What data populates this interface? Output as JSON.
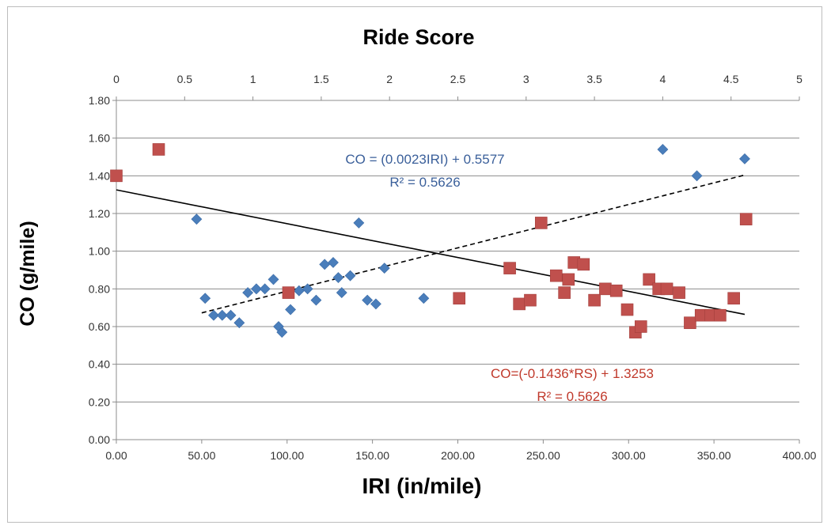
{
  "chart_data": {
    "type": "scatter",
    "title": "Ride Score",
    "xlabel": "IRI (in/mile)",
    "ylabel": "CO (g/mile)",
    "x_axis": {
      "range": [
        0,
        400
      ],
      "tick_labels": [
        "0.00",
        "50.00",
        "100.00",
        "150.00",
        "200.00",
        "250.00",
        "300.00",
        "350.00",
        "400.00"
      ]
    },
    "x2_axis": {
      "range": [
        0,
        5
      ],
      "tick_labels": [
        "0",
        "0.5",
        "1",
        "1.5",
        "2",
        "2.5",
        "3",
        "3.5",
        "4",
        "4.5",
        "5"
      ]
    },
    "y_axis": {
      "range": [
        0,
        1.8
      ],
      "tick_labels": [
        "0.00",
        "0.20",
        "0.40",
        "0.60",
        "0.80",
        "1.00",
        "1.20",
        "1.40",
        "1.60",
        "1.80"
      ]
    },
    "grid": true,
    "series": [
      {
        "axis": "IRI",
        "marker": "diamond",
        "color": "#4a7ebb",
        "points": [
          [
            47,
            1.17
          ],
          [
            52,
            0.75
          ],
          [
            57,
            0.66
          ],
          [
            62,
            0.66
          ],
          [
            67,
            0.66
          ],
          [
            72,
            0.62
          ],
          [
            77,
            0.78
          ],
          [
            82,
            0.8
          ],
          [
            87,
            0.8
          ],
          [
            92,
            0.85
          ],
          [
            95,
            0.6
          ],
          [
            97,
            0.57
          ],
          [
            102,
            0.69
          ],
          [
            107,
            0.79
          ],
          [
            112,
            0.8
          ],
          [
            117,
            0.74
          ],
          [
            122,
            0.93
          ],
          [
            127,
            0.94
          ],
          [
            130,
            0.86
          ],
          [
            132,
            0.78
          ],
          [
            137,
            0.87
          ],
          [
            142,
            1.15
          ],
          [
            147,
            0.74
          ],
          [
            152,
            0.72
          ],
          [
            157,
            0.91
          ],
          [
            180,
            0.75
          ],
          [
            320,
            1.54
          ],
          [
            340,
            1.4
          ],
          [
            368,
            1.49
          ]
        ]
      },
      {
        "axis": "Ride Score",
        "marker": "square",
        "color": "#c0504d",
        "points": [
          [
            0.0,
            1.4
          ],
          [
            0.31,
            1.54
          ],
          [
            1.26,
            0.78
          ],
          [
            2.51,
            0.75
          ],
          [
            2.88,
            0.91
          ],
          [
            2.95,
            0.72
          ],
          [
            3.03,
            0.74
          ],
          [
            3.11,
            1.15
          ],
          [
            3.22,
            0.87
          ],
          [
            3.31,
            0.85
          ],
          [
            3.28,
            0.78
          ],
          [
            3.35,
            0.94
          ],
          [
            3.42,
            0.93
          ],
          [
            3.5,
            0.74
          ],
          [
            3.58,
            0.8
          ],
          [
            3.66,
            0.79
          ],
          [
            3.74,
            0.69
          ],
          [
            3.8,
            0.57
          ],
          [
            3.84,
            0.6
          ],
          [
            3.9,
            0.85
          ],
          [
            3.97,
            0.8
          ],
          [
            4.03,
            0.8
          ],
          [
            4.12,
            0.78
          ],
          [
            4.2,
            0.62
          ],
          [
            4.28,
            0.66
          ],
          [
            4.35,
            0.66
          ],
          [
            4.42,
            0.66
          ],
          [
            4.52,
            0.75
          ],
          [
            4.61,
            1.17
          ]
        ]
      }
    ],
    "trendlines": [
      {
        "series_axis": "IRI",
        "style": "dashed",
        "color": "#000000",
        "slope": 0.0023,
        "intercept": 0.5577,
        "x_range": [
          50,
          368
        ],
        "equation_label": "CO = (0.0023IRI) + 0.5577",
        "r2_label": "R² = 0.5626",
        "label_color": "#3a5f9a"
      },
      {
        "series_axis": "Ride Score",
        "style": "solid",
        "color": "#000000",
        "slope": -0.1436,
        "intercept": 1.3253,
        "x_range": [
          0,
          4.6
        ],
        "equation_label": "CO=(-0.1436*RS) + 1.3253",
        "r2_label": "R² = 0.5626",
        "label_color": "#c0392b"
      }
    ]
  }
}
